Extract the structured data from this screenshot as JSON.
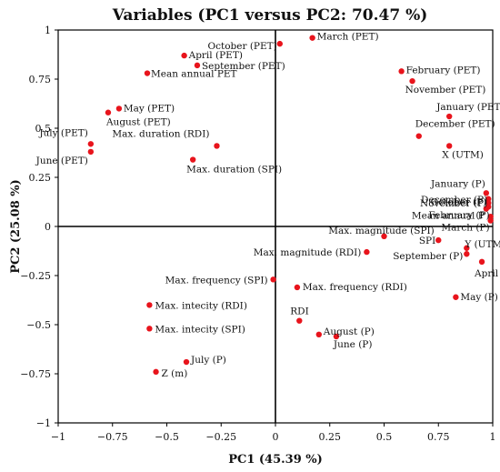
{
  "chart_data": {
    "type": "scatter",
    "title": "Variables (PC1 versus PC2: 70.47 %)",
    "xlabel": "PC1 (45.39 %)",
    "ylabel": "PC2 (25.08 %)",
    "xlim": [
      -1,
      1
    ],
    "ylim": [
      -1,
      1
    ],
    "xticks": [
      -1,
      -0.75,
      -0.5,
      -0.25,
      0,
      0.25,
      0.5,
      0.75,
      1
    ],
    "yticks": [
      -1,
      -0.75,
      -0.5,
      -0.25,
      0,
      0.25,
      0.5,
      0.75,
      1
    ],
    "xtick_labels": [
      "−1",
      "−0.75",
      "−0.5",
      "−0.25",
      "0",
      "0.25",
      "0.5",
      "0.75",
      "1"
    ],
    "ytick_labels": [
      "−1",
      "−0.75",
      "−0.5",
      "−0.25",
      "0",
      "0.25",
      "0.5",
      "0.75",
      "1"
    ],
    "grid": false,
    "zero_lines": true,
    "point_color": "#e8141c",
    "points": [
      {
        "label": "March (PET)",
        "x": 0.17,
        "y": 0.96
      },
      {
        "label": "October (PET)",
        "x": 0.02,
        "y": 0.93
      },
      {
        "label": "April (PET)",
        "x": -0.42,
        "y": 0.87
      },
      {
        "label": "September (PET)",
        "x": -0.36,
        "y": 0.82
      },
      {
        "label": "Mean annual PET",
        "x": -0.59,
        "y": 0.78
      },
      {
        "label": "February (PET)",
        "x": 0.58,
        "y": 0.79
      },
      {
        "label": "November (PET)",
        "x": 0.63,
        "y": 0.74
      },
      {
        "label": "January (PET)",
        "x": 0.8,
        "y": 0.56
      },
      {
        "label": "December (PET)",
        "x": 0.66,
        "y": 0.46
      },
      {
        "label": "X (UTM)",
        "x": 0.8,
        "y": 0.41
      },
      {
        "label": "May (PET)",
        "x": -0.72,
        "y": 0.6
      },
      {
        "label": "August (PET)",
        "x": -0.77,
        "y": 0.58
      },
      {
        "label": "July (PET)",
        "x": -0.85,
        "y": 0.42
      },
      {
        "label": "June (PET)",
        "x": -0.85,
        "y": 0.38
      },
      {
        "label": "Max. duration (RDI)",
        "x": -0.27,
        "y": 0.41
      },
      {
        "label": "Max. duration (SPI)",
        "x": -0.38,
        "y": 0.34
      },
      {
        "label": "January (P)",
        "x": 0.97,
        "y": 0.17
      },
      {
        "label": "December (P)",
        "x": 0.98,
        "y": 0.14
      },
      {
        "label": "November (P)",
        "x": 0.98,
        "y": 0.12
      },
      {
        "label": "October (P)",
        "x": 0.98,
        "y": 0.1
      },
      {
        "label": "Mean annual P",
        "x": 0.97,
        "y": 0.09
      },
      {
        "label": "February (P)",
        "x": 0.99,
        "y": 0.05
      },
      {
        "label": "March (P)",
        "x": 0.99,
        "y": 0.03
      },
      {
        "label": "Max. magnitude (SPI)",
        "x": 0.5,
        "y": -0.05
      },
      {
        "label": "SPI",
        "x": 0.75,
        "y": -0.07
      },
      {
        "label": "Y (UTM)",
        "x": 0.88,
        "y": -0.11
      },
      {
        "label": "September (P)",
        "x": 0.88,
        "y": -0.14
      },
      {
        "label": "April (P)",
        "x": 0.95,
        "y": -0.18
      },
      {
        "label": "Max. magnitude (RDI)",
        "x": 0.42,
        "y": -0.13
      },
      {
        "label": "Max. frequency (SPI)",
        "x": -0.01,
        "y": -0.27
      },
      {
        "label": "Max. frequency (RDI)",
        "x": 0.1,
        "y": -0.31
      },
      {
        "label": "May (P)",
        "x": 0.83,
        "y": -0.36
      },
      {
        "label": "Max. intecity (RDI)",
        "x": -0.58,
        "y": -0.4
      },
      {
        "label": "Max. intecity (SPI)",
        "x": -0.58,
        "y": -0.52
      },
      {
        "label": "RDI",
        "x": 0.11,
        "y": -0.48
      },
      {
        "label": "August (P)",
        "x": 0.2,
        "y": -0.55
      },
      {
        "label": "June (P)",
        "x": 0.28,
        "y": -0.56
      },
      {
        "label": "July (P)",
        "x": -0.41,
        "y": -0.69
      },
      {
        "label": "Z (m)",
        "x": -0.55,
        "y": -0.74
      }
    ]
  }
}
